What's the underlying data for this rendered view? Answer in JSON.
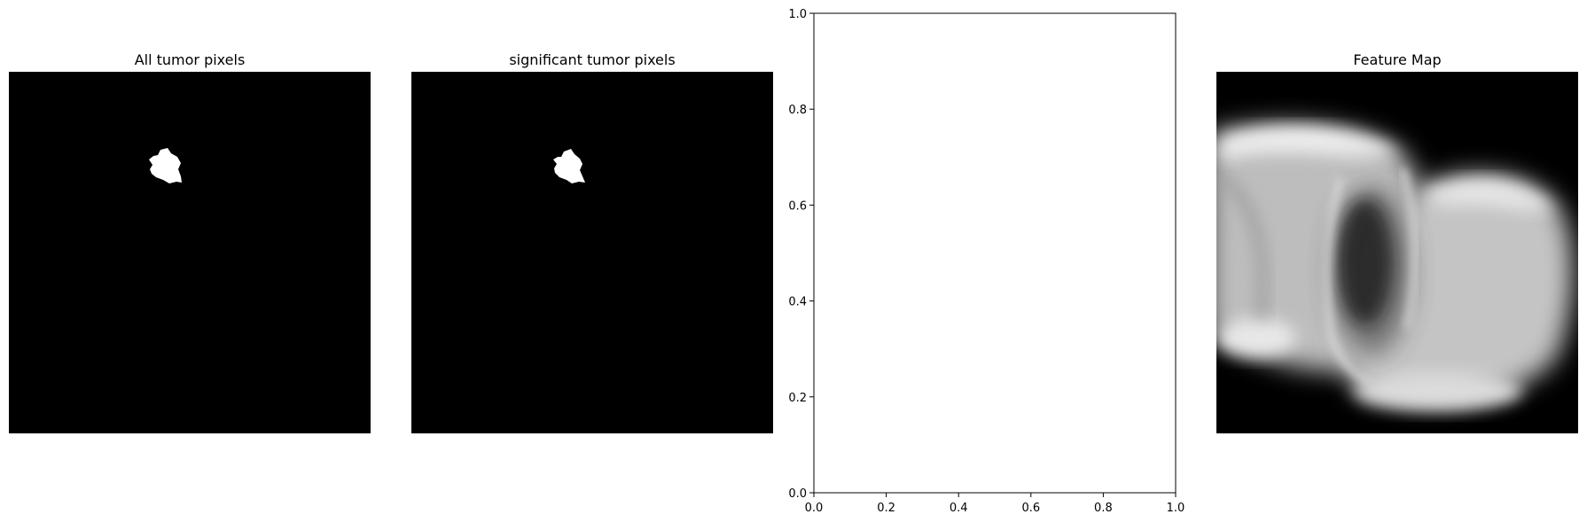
{
  "chart_data": [
    {
      "type": "heatmap",
      "title": "All tumor pixels",
      "colormap": "gray",
      "content": "binary tumor mask: single white blob near the upper-left on a black background",
      "axes_visible": false
    },
    {
      "type": "heatmap",
      "title": "significant tumor pixels",
      "colormap": "gray",
      "content": "binary tumor mask: single white blob near the upper-left on a black background",
      "axes_visible": false
    },
    {
      "type": "scatter",
      "title": "",
      "xlabel": "",
      "ylabel": "",
      "xlim": [
        0,
        1
      ],
      "ylim": [
        0,
        1
      ],
      "xticks": [
        "0.0",
        "0.2",
        "0.4",
        "0.6",
        "0.8",
        "1.0"
      ],
      "yticks": [
        "0.0",
        "0.2",
        "0.4",
        "0.6",
        "0.8",
        "1.0"
      ],
      "series": [],
      "grid": false
    },
    {
      "type": "heatmap",
      "title": "Feature Map",
      "colormap": "gray",
      "content": "blurred grayscale feature map with two bright rounded lobes and a dark central region",
      "axes_visible": false
    }
  ]
}
